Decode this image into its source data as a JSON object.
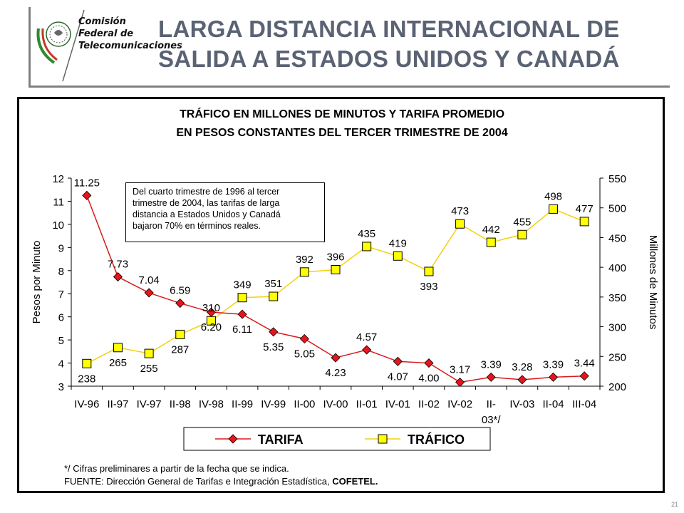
{
  "logo": {
    "lines": [
      "Comisión",
      "Federal de",
      "Telecomunicaciones"
    ]
  },
  "title": {
    "line1": "LARGA DISTANCIA INTERNACIONAL DE",
    "line2": "SALIDA A ESTADOS UNIDOS Y CANADÁ"
  },
  "chart": {
    "title_line1": "TRÁFICO EN MILLONES DE MINUTOS  Y TARIFA PROMEDIO",
    "title_line2": "EN PESOS CONSTANTES DEL TERCER TRIMESTRE DE 2004",
    "note": [
      "Del cuarto trimestre de 1996 al tercer",
      "trimestre de 2004, las tarifas de larga",
      "distancia a Estados Unidos y Canadá",
      "bajaron 70% en términos reales."
    ]
  },
  "footer": {
    "footnote": "*/ Cifras preliminares a partir de la fecha que se indica.",
    "source_prefix": "FUENTE: Dirección General de Tarifas e Integración Estadística, ",
    "source_bold": "COFETEL."
  },
  "page_number": "21",
  "colors": {
    "title": "#5a6274",
    "tarifa": "#e8141c",
    "tarifa_line": "#d81b1b",
    "trafico": "#ffff00",
    "trafico_line": "#f2d20f"
  },
  "chart_data": {
    "type": "line",
    "categories": [
      "IV-96",
      "II-97",
      "IV-97",
      "II-98",
      "IV-98",
      "II-99",
      "IV-99",
      "II-00",
      "IV-00",
      "II-01",
      "IV-01",
      "II-02",
      "IV-02",
      "II-03*/",
      "IV-03",
      "II-04",
      "III-04"
    ],
    "category_lines": [
      [
        "IV-96"
      ],
      [
        "II-97"
      ],
      [
        "IV-97"
      ],
      [
        "II-98"
      ],
      [
        "IV-98"
      ],
      [
        "II-99"
      ],
      [
        "IV-99"
      ],
      [
        "II-00"
      ],
      [
        "IV-00"
      ],
      [
        "II-01"
      ],
      [
        "IV-01"
      ],
      [
        "II-02"
      ],
      [
        "IV-02"
      ],
      [
        "II-",
        "03*/"
      ],
      [
        "IV-03"
      ],
      [
        "II-04"
      ],
      [
        "III-04"
      ]
    ],
    "series": [
      {
        "name": "TARIFA",
        "axis": "left",
        "marker": "diamond",
        "values": [
          11.25,
          7.73,
          7.04,
          6.59,
          6.2,
          6.11,
          5.35,
          5.05,
          4.23,
          4.57,
          4.07,
          4.0,
          3.17,
          3.39,
          3.28,
          3.39,
          3.44
        ],
        "labels": [
          "11.25",
          "7.73",
          "7.04",
          "6.59",
          "6.20",
          "6.11",
          "5.35",
          "5.05",
          "4.23",
          "4.57",
          "4.07",
          "4.00",
          "3.17",
          "3.39",
          "3.28",
          "3.39",
          "3.44"
        ]
      },
      {
        "name": "TRÁFICO",
        "axis": "right",
        "marker": "square",
        "values": [
          238,
          265,
          255,
          287,
          310,
          349,
          351,
          392,
          396,
          435,
          419,
          393,
          473,
          442,
          455,
          498,
          477
        ],
        "labels": [
          "238",
          "265",
          "255",
          "287",
          "310",
          "349",
          "351",
          "392",
          "396",
          "435",
          "419",
          "393",
          "473",
          "442",
          "455",
          "498",
          "477"
        ]
      }
    ],
    "ylabel": "Pesos por Minuto",
    "ylabel_right": "Millones de Minutos",
    "ylim": [
      3,
      12
    ],
    "yticks": [
      3,
      4,
      5,
      6,
      7,
      8,
      9,
      10,
      11,
      12
    ],
    "ylim_right": [
      200,
      550
    ],
    "yticks_right": [
      200,
      250,
      300,
      350,
      400,
      450,
      500,
      550
    ],
    "grid": false,
    "legend_placement": "bottom"
  }
}
